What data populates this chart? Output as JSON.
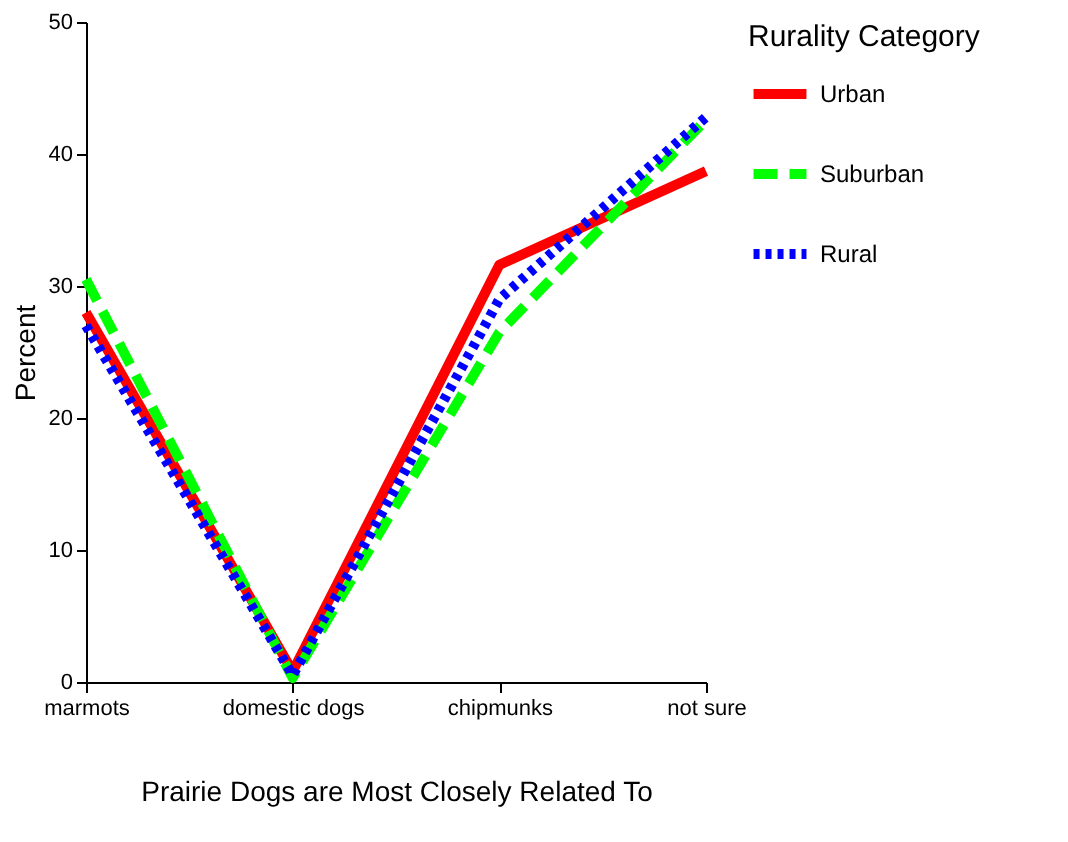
{
  "chart_data": {
    "type": "line",
    "xlabel": "Prairie Dogs are Most Closely Related To",
    "ylabel": "Percent",
    "legend_title": "Rurality Category",
    "legend": "right",
    "grid": false,
    "marker": "none",
    "categories": [
      "marmots",
      "domestic dogs",
      "chipmunks",
      "not sure"
    ],
    "ylim": [
      0,
      50
    ],
    "yticks": [
      0,
      10,
      20,
      30,
      40,
      50
    ],
    "series": [
      {
        "name": "Urban",
        "color": "#ff0000",
        "line_style": "solid",
        "values": [
          28,
          0.8,
          31.6,
          38.7
        ]
      },
      {
        "name": "Suburban",
        "color": "#00ff00",
        "line_style": "dashed",
        "values": [
          30.5,
          0.3,
          26.5,
          42.6
        ]
      },
      {
        "name": "Rural",
        "color": "#0000ff",
        "line_style": "dotted",
        "values": [
          27,
          0.5,
          29,
          42.8
        ]
      }
    ]
  }
}
